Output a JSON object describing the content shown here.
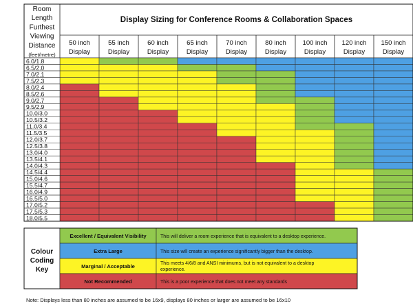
{
  "chart_data": {
    "type": "table",
    "title": "Display Sizing for Conference Rooms & Collaboration Spaces",
    "row_header_lines": [
      "Room",
      "Length",
      "Furthest",
      "Viewing",
      "Distance",
      "(feet/metre)"
    ],
    "columns": [
      {
        "size": "50 inch",
        "unit": "Display"
      },
      {
        "size": "55 inch",
        "unit": "Display"
      },
      {
        "size": "60 inch",
        "unit": "Display"
      },
      {
        "size": "65 inch",
        "unit": "Display"
      },
      {
        "size": "70 inch",
        "unit": "Display"
      },
      {
        "size": "80 inch",
        "unit": "Display"
      },
      {
        "size": "100 inch",
        "unit": "Display"
      },
      {
        "size": "120 inch",
        "unit": "Display"
      },
      {
        "size": "150 inch",
        "unit": "Display"
      }
    ],
    "rows": [
      "6.0/1.8",
      "6.5/2.0",
      "7.0/2.1",
      "7.5/2.3",
      "8.0/2.4",
      "8.5/2.6",
      "9.0/2.7",
      "9.5/2.9",
      "10.0/3.0",
      "10.5/3.2",
      "11.0/3.4",
      "11.5/3.5",
      "12.0/3.7",
      "12.5/3.8",
      "13.0/4.0",
      "13.5/4.1",
      "14.0/4.3",
      "14.5/4.4",
      "15.0/4.6",
      "15.5/4.7",
      "16.0/4.9",
      "16.5/5.0",
      "17.0/5.2",
      "17.5/5.3",
      "18.0/5.5"
    ],
    "cell_codes": [
      "YGGBBBBBB",
      "YYYGGBBBB",
      "YYYYGGBBB",
      "YYYYGGBBB",
      "RYYYYGBBB",
      "RYYYYGBBB",
      "RRYYYGGBB",
      "RRYYYYGBB",
      "RRRYYYGBB",
      "RRRYYYGBB",
      "RRRRYYGGB",
      "RRRRYYYGB",
      "RRRRRYYGB",
      "RRRRRYYGB",
      "RRRRRYYGB",
      "RRRRRYYGB",
      "RRRRRRYGB",
      "RRRRRRYYG",
      "RRRRRRYYG",
      "RRRRRRYYG",
      "RRRRRRYYG",
      "RRRRRRYYG",
      "RRRRRRRYG",
      "RRRRRRRYG",
      "RRRRRRRYG"
    ],
    "colors": {
      "G": "#92c94e",
      "B": "#4ea0e3",
      "Y": "#fdf425",
      "R": "#d0484b"
    },
    "legend": {
      "title_lines": [
        "Colour",
        "Coding",
        "Key"
      ],
      "items": [
        {
          "code": "G",
          "label": "Excellent  /  Equivalent Visibility",
          "desc_lines": [
            "This will deliver a room experience that is equivalent to a desktop experience."
          ]
        },
        {
          "code": "B",
          "label": "Extra Large",
          "desc_lines": [
            "This size will create an experience significantly bigger than the desktop."
          ]
        },
        {
          "code": "Y",
          "label": "Marginal / Acceptable",
          "desc_lines": [
            "This meets 4/6/8 and ANSI minimums, but is not equivalent to a desktop",
            "experience."
          ]
        },
        {
          "code": "R",
          "label": "Not Recommended",
          "desc_lines": [
            "This is a poor experience that does not meet any standards"
          ]
        }
      ]
    },
    "note": "Note: Displays less than 80 inches are assumed to be 16x9, displays 80 inches or larger are assumed to be 16x10"
  }
}
